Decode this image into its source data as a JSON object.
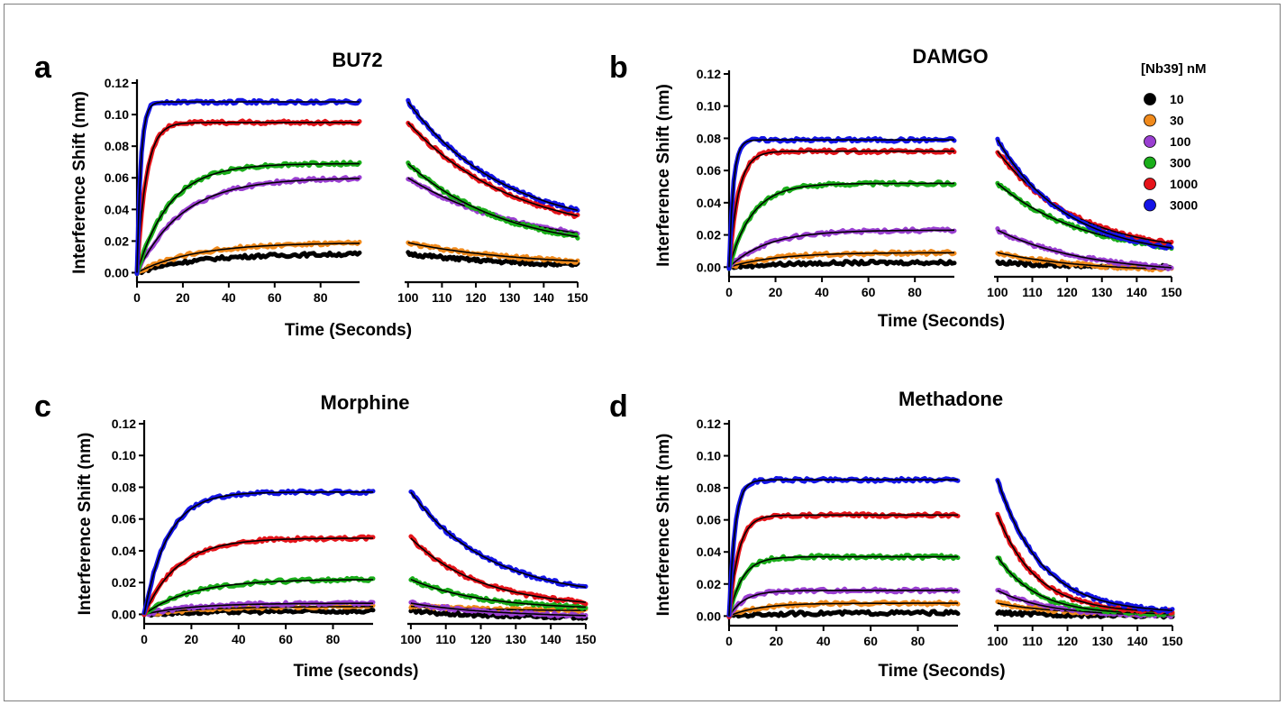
{
  "legend": {
    "title": "[Nb39] nM",
    "entries": [
      {
        "label": "10",
        "color": "#000000"
      },
      {
        "label": "30",
        "color": "#f08a1c"
      },
      {
        "label": "100",
        "color": "#9a3fd1"
      },
      {
        "label": "300",
        "color": "#1aae1a"
      },
      {
        "label": "1000",
        "color": "#e5141a"
      },
      {
        "label": "3000",
        "color": "#1414e6"
      }
    ]
  },
  "chart_data": [
    {
      "type": "line",
      "panel_letter": "a",
      "title": "BU72",
      "xlabel": "Time (Seconds)",
      "ylabel": "Interference Shift (nm)",
      "ylim": [
        -0.006,
        0.12
      ],
      "yticks": [
        "0.00",
        "0.02",
        "0.04",
        "0.06",
        "0.08",
        "0.10",
        "0.12"
      ],
      "xlim_association": [
        0,
        97
      ],
      "xlim_dissociation": [
        99,
        150
      ],
      "xticks_association": [
        "0",
        "20",
        "40",
        "60",
        "80"
      ],
      "xticks_dissociation": [
        "100",
        "110",
        "120",
        "130",
        "140",
        "150"
      ],
      "series": [
        {
          "name": "10",
          "plateau": 0.012,
          "k_on": 0.04,
          "end_value": 0.003,
          "k_off": 0.03
        },
        {
          "name": "30",
          "plateau": 0.019,
          "k_on": 0.04,
          "end_value": 0.004,
          "k_off": 0.03
        },
        {
          "name": "100",
          "plateau": 0.06,
          "k_on": 0.05,
          "end_value": 0.015,
          "k_off": 0.03
        },
        {
          "name": "300",
          "plateau": 0.069,
          "k_on": 0.07,
          "end_value": 0.013,
          "k_off": 0.035
        },
        {
          "name": "1000",
          "plateau": 0.095,
          "k_on": 0.25,
          "end_value": 0.021,
          "k_off": 0.032
        },
        {
          "name": "3000",
          "plateau": 0.108,
          "k_on": 0.6,
          "end_value": 0.025,
          "k_off": 0.035
        }
      ]
    },
    {
      "type": "line",
      "panel_letter": "b",
      "title": "DAMGO",
      "xlabel": "Time (Seconds)",
      "ylabel": "Interference Shift (nm)",
      "ylim": [
        -0.006,
        0.12
      ],
      "yticks": [
        "0.00",
        "0.02",
        "0.04",
        "0.06",
        "0.08",
        "0.10",
        "0.12"
      ],
      "xlim_association": [
        0,
        97
      ],
      "xlim_dissociation": [
        99,
        150
      ],
      "xticks_association": [
        "0",
        "20",
        "40",
        "60",
        "80"
      ],
      "xticks_dissociation": [
        "100",
        "110",
        "120",
        "130",
        "140",
        "150"
      ],
      "series": [
        {
          "name": "10",
          "plateau": 0.003,
          "k_on": 0.04,
          "end_value": 0.0,
          "k_off": 0.05
        },
        {
          "name": "30",
          "plateau": 0.009,
          "k_on": 0.05,
          "end_value": -0.003,
          "k_off": 0.04
        },
        {
          "name": "100",
          "plateau": 0.023,
          "k_on": 0.06,
          "end_value": -0.004,
          "k_off": 0.04
        },
        {
          "name": "300",
          "plateau": 0.052,
          "k_on": 0.1,
          "end_value": 0.006,
          "k_off": 0.04
        },
        {
          "name": "1000",
          "plateau": 0.072,
          "k_on": 0.25,
          "end_value": 0.008,
          "k_off": 0.045
        },
        {
          "name": "3000",
          "plateau": 0.079,
          "k_on": 0.55,
          "end_value": 0.006,
          "k_off": 0.05
        }
      ]
    },
    {
      "type": "line",
      "panel_letter": "c",
      "title": "Morphine",
      "xlabel": "Time (seconds)",
      "ylabel": "Interference Shift (nm)",
      "ylim": [
        -0.006,
        0.12
      ],
      "yticks": [
        "0.00",
        "0.02",
        "0.04",
        "0.06",
        "0.08",
        "0.10",
        "0.12"
      ],
      "xlim_association": [
        0,
        97
      ],
      "xlim_dissociation": [
        99,
        150
      ],
      "xticks_association": [
        "0",
        "20",
        "40",
        "60",
        "80"
      ],
      "xticks_dissociation": [
        "100",
        "110",
        "120",
        "130",
        "140",
        "150"
      ],
      "series": [
        {
          "name": "10",
          "plateau": 0.002,
          "k_on": 0.04,
          "end_value": -0.002,
          "k_off": 0.05
        },
        {
          "name": "30",
          "plateau": 0.005,
          "k_on": 0.04,
          "end_value": 0.002,
          "k_off": 0.04
        },
        {
          "name": "100",
          "plateau": 0.007,
          "k_on": 0.05,
          "end_value": -0.002,
          "k_off": 0.04
        },
        {
          "name": "300",
          "plateau": 0.022,
          "k_on": 0.05,
          "end_value": 0.003,
          "k_off": 0.05
        },
        {
          "name": "1000",
          "plateau": 0.048,
          "k_on": 0.07,
          "end_value": 0.004,
          "k_off": 0.05
        },
        {
          "name": "3000",
          "plateau": 0.077,
          "k_on": 0.1,
          "end_value": 0.01,
          "k_off": 0.045
        }
      ]
    },
    {
      "type": "line",
      "panel_letter": "d",
      "title": "Methadone",
      "xlabel": "Time (Seconds)",
      "ylabel": "Interference Shift (nm)",
      "ylim": [
        -0.006,
        0.12
      ],
      "yticks": [
        "0.00",
        "0.02",
        "0.04",
        "0.06",
        "0.08",
        "0.10",
        "0.12"
      ],
      "xlim_association": [
        0,
        97
      ],
      "xlim_dissociation": [
        99,
        150
      ],
      "xticks_association": [
        "0",
        "20",
        "40",
        "60",
        "80"
      ],
      "xticks_dissociation": [
        "100",
        "110",
        "120",
        "130",
        "140",
        "150"
      ],
      "series": [
        {
          "name": "10",
          "plateau": 0.002,
          "k_on": 0.05,
          "end_value": 0.0,
          "k_off": 0.05
        },
        {
          "name": "30",
          "plateau": 0.008,
          "k_on": 0.08,
          "end_value": 0.001,
          "k_off": 0.06
        },
        {
          "name": "100",
          "plateau": 0.016,
          "k_on": 0.15,
          "end_value": 0.0,
          "k_off": 0.07
        },
        {
          "name": "300",
          "plateau": 0.037,
          "k_on": 0.18,
          "end_value": 0.001,
          "k_off": 0.09
        },
        {
          "name": "1000",
          "plateau": 0.063,
          "k_on": 0.25,
          "end_value": 0.002,
          "k_off": 0.09
        },
        {
          "name": "3000",
          "plateau": 0.085,
          "k_on": 0.4,
          "end_value": 0.002,
          "k_off": 0.08
        }
      ]
    }
  ]
}
